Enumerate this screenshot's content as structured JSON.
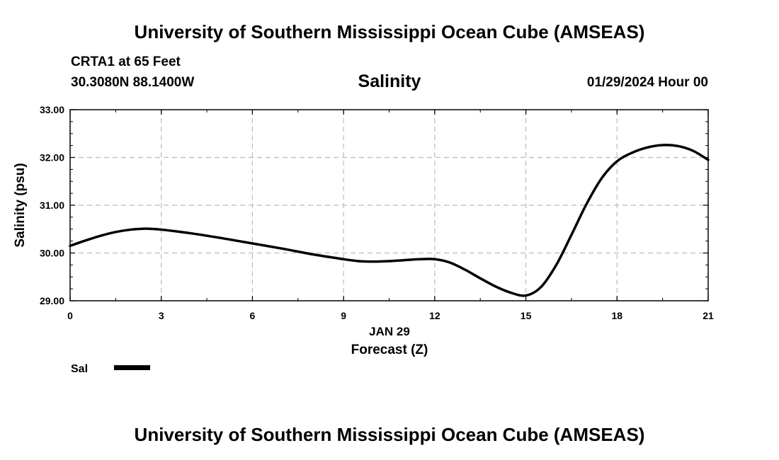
{
  "header": {
    "title": "University of Southern Mississippi Ocean Cube (AMSEAS)",
    "station": "CRTA1 at 65 Feet",
    "coordinates": "30.3080N  88.1400W",
    "timestamp": "01/29/2024 Hour 00"
  },
  "footer": {
    "title": "University of Southern Mississippi Ocean Cube (AMSEAS)"
  },
  "colors": {
    "line": "#000000",
    "grid": "#bbbbbb",
    "background": "#ffffff"
  },
  "chart_data": {
    "type": "line",
    "title": "Salinity",
    "xlabel": "Forecast (Z)",
    "xlabel_date": "JAN 29",
    "ylabel": "Salinity (psu)",
    "xlim": [
      0,
      21
    ],
    "ylim": [
      29,
      33
    ],
    "x_ticks": [
      "0",
      "3",
      "6",
      "9",
      "12",
      "15",
      "18",
      "21"
    ],
    "y_ticks": [
      "29.00",
      "30.00",
      "31.00",
      "32.00",
      "33.00"
    ],
    "grid": true,
    "legend": [
      {
        "label": "Sal",
        "position": "bottom-left"
      }
    ],
    "series": [
      {
        "name": "Sal",
        "x": [
          0,
          0.5,
          1,
          1.5,
          2,
          2.5,
          3,
          4,
          5,
          6,
          7,
          8,
          9,
          9.5,
          10,
          10.5,
          11,
          11.5,
          12,
          12.5,
          13,
          13.5,
          14,
          14.5,
          15,
          15.5,
          16,
          16.5,
          17,
          17.5,
          18,
          18.5,
          19,
          19.5,
          20,
          20.5,
          21
        ],
        "y": [
          30.15,
          30.26,
          30.36,
          30.44,
          30.49,
          30.51,
          30.49,
          30.41,
          30.31,
          30.2,
          30.09,
          29.97,
          29.87,
          29.83,
          29.82,
          29.83,
          29.85,
          29.87,
          29.87,
          29.8,
          29.65,
          29.47,
          29.3,
          29.17,
          29.11,
          29.29,
          29.75,
          30.38,
          31.03,
          31.57,
          31.92,
          32.1,
          32.21,
          32.26,
          32.24,
          32.14,
          31.95
        ]
      }
    ]
  }
}
